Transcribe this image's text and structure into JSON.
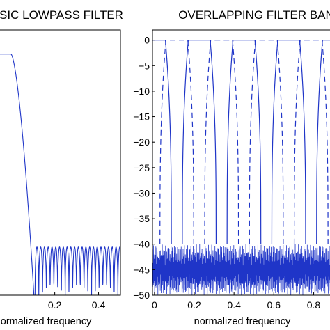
{
  "chart_data": [
    {
      "type": "line",
      "title": "SIC LOWPASS FILTER",
      "xlabel": "normalized frequency",
      "ylabel": "",
      "xlim": [
        -0.05,
        0.5
      ],
      "ylim": [
        -50,
        5
      ],
      "xticks": [
        0.2,
        0.4
      ],
      "xtick_labels": [
        "0.2",
        "0.4"
      ],
      "yticks": [],
      "grid": false,
      "series": [
        {
          "style": "solid",
          "color": "#1f35c8",
          "description_values": {
            "passband_db": 0,
            "passband_edge": 0.0,
            "stopband_start": 0.11,
            "stopband_level_db": -40,
            "stopband_ripple_floor_db": -45,
            "ripple_period": 0.0172
          }
        }
      ]
    },
    {
      "type": "line",
      "title": "OVERLAPPING FILTER BAN",
      "xlabel": "normalized frequency",
      "ylabel": "",
      "xlim": [
        -0.01,
        0.9
      ],
      "ylim": [
        -50,
        2
      ],
      "xticks": [
        0,
        0.2,
        0.4,
        0.6,
        0.8
      ],
      "xtick_labels": [
        "0",
        "0.2",
        "0.4",
        "0.6",
        "0.8"
      ],
      "yticks": [
        0,
        -5,
        -10,
        -15,
        -20,
        -25,
        -30,
        -35,
        -40,
        -45,
        -50
      ],
      "ytick_labels": [
        "0",
        "−5",
        "−10",
        "−15",
        "−20",
        "−25",
        "−30",
        "−35",
        "−40",
        "−45",
        "−50"
      ],
      "grid": false,
      "series": [
        {
          "style": "solid",
          "color": "#1f35c8",
          "band_centers": [
            0.0,
            0.225,
            0.45,
            0.675,
            0.9
          ],
          "passband_half_width": 0.055,
          "transition_width": 0.03,
          "stopband_level_db": -40
        },
        {
          "style": "dashed",
          "color": "#1f35c8",
          "band_centers": [
            0.1125,
            0.3375,
            0.5625,
            0.7875
          ],
          "passband_half_width": 0.055,
          "transition_width": 0.03,
          "stopband_level_db": -40
        }
      ],
      "floor_band_db": [
        -50,
        -40
      ]
    }
  ]
}
